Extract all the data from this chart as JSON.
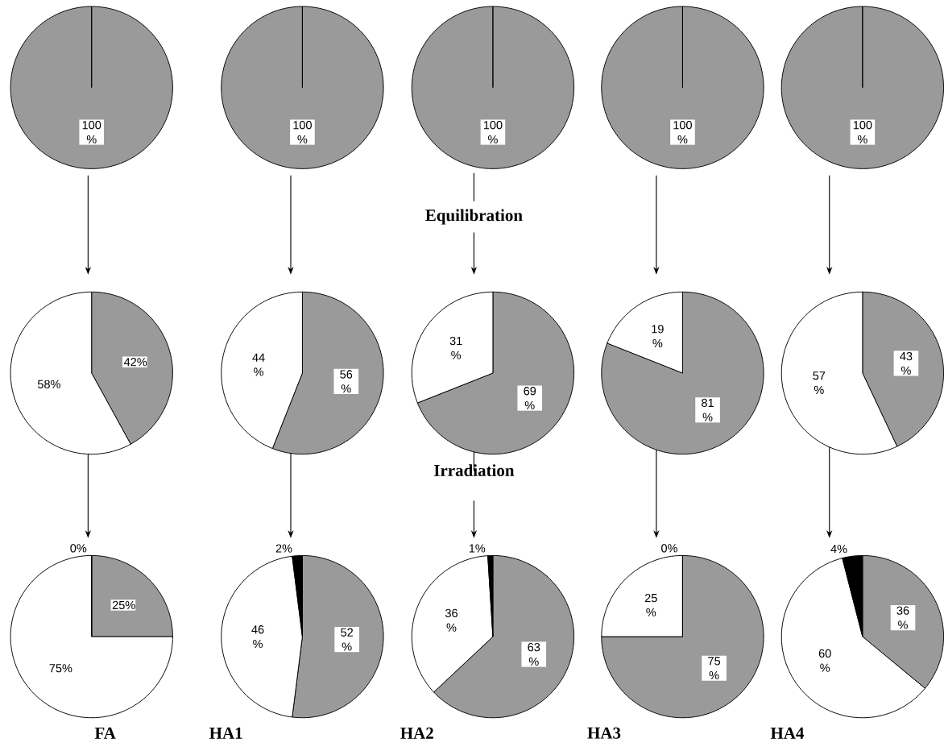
{
  "chart_data": [
    {
      "type": "pie",
      "categories": [
        null
      ],
      "values": [
        100
      ],
      "colors": [
        "#9a9a9a"
      ],
      "value_labels": [
        "100 %"
      ]
    },
    {
      "type": "pie",
      "categories": [
        null
      ],
      "values": [
        100
      ],
      "colors": [
        "#9a9a9a"
      ],
      "value_labels": [
        "100 %"
      ]
    },
    {
      "type": "pie",
      "categories": [
        null
      ],
      "values": [
        100
      ],
      "colors": [
        "#9a9a9a"
      ],
      "value_labels": [
        "100 %"
      ]
    },
    {
      "type": "pie",
      "categories": [
        null
      ],
      "values": [
        100
      ],
      "colors": [
        "#9a9a9a"
      ],
      "value_labels": [
        "100 %"
      ]
    },
    {
      "type": "pie",
      "categories": [
        null
      ],
      "values": [
        100
      ],
      "colors": [
        "#9a9a9a"
      ],
      "value_labels": [
        "100 %"
      ]
    },
    {
      "type": "pie",
      "categories": [
        null,
        null
      ],
      "values": [
        42,
        58
      ],
      "colors": [
        "#9a9a9a",
        "#ffffff"
      ],
      "value_labels": [
        "42%",
        "58%"
      ]
    },
    {
      "type": "pie",
      "categories": [
        null,
        null
      ],
      "values": [
        56,
        44
      ],
      "colors": [
        "#9a9a9a",
        "#ffffff"
      ],
      "value_labels": [
        "56 %",
        "44 %"
      ]
    },
    {
      "type": "pie",
      "categories": [
        null,
        null
      ],
      "values": [
        69,
        31
      ],
      "colors": [
        "#9a9a9a",
        "#ffffff"
      ],
      "value_labels": [
        "69 %",
        "31 %"
      ],
      "annotations": [
        "Equilibration"
      ]
    },
    {
      "type": "pie",
      "categories": [
        null,
        null
      ],
      "values": [
        81,
        19
      ],
      "colors": [
        "#9a9a9a",
        "#ffffff"
      ],
      "value_labels": [
        "81 %",
        "19 %"
      ]
    },
    {
      "type": "pie",
      "categories": [
        null,
        null
      ],
      "values": [
        43,
        57
      ],
      "colors": [
        "#9a9a9a",
        "#ffffff"
      ],
      "value_labels": [
        "43 %",
        "57 %"
      ]
    },
    {
      "type": "pie",
      "categories": [
        null,
        null,
        null
      ],
      "values": [
        25,
        75,
        0
      ],
      "colors": [
        "#9a9a9a",
        "#ffffff",
        "#000000"
      ],
      "value_labels": [
        "25%",
        "75%",
        "0%"
      ],
      "title": "FA"
    },
    {
      "type": "pie",
      "categories": [
        null,
        null,
        null
      ],
      "values": [
        52,
        46,
        2
      ],
      "colors": [
        "#9a9a9a",
        "#ffffff",
        "#000000"
      ],
      "value_labels": [
        "52 %",
        "46 %",
        "2%"
      ],
      "title": "HA1"
    },
    {
      "type": "pie",
      "categories": [
        null,
        null,
        null
      ],
      "values": [
        63,
        36,
        1
      ],
      "colors": [
        "#9a9a9a",
        "#ffffff",
        "#000000"
      ],
      "value_labels": [
        "63 %",
        "36 %",
        "1%"
      ],
      "title": "HA2",
      "annotations": [
        "Irradiation"
      ]
    },
    {
      "type": "pie",
      "categories": [
        null,
        null,
        null
      ],
      "values": [
        75,
        25,
        0
      ],
      "colors": [
        "#9a9a9a",
        "#ffffff",
        "#000000"
      ],
      "value_labels": [
        "75 %",
        "25 %",
        "0%"
      ],
      "title": "HA3"
    },
    {
      "type": "pie",
      "categories": [
        null,
        null,
        null
      ],
      "values": [
        36,
        60,
        4
      ],
      "colors": [
        "#9a9a9a",
        "#ffffff",
        "#000000"
      ],
      "value_labels": [
        "36 %",
        "60 %",
        "4%"
      ],
      "title": "HA4"
    }
  ]
}
